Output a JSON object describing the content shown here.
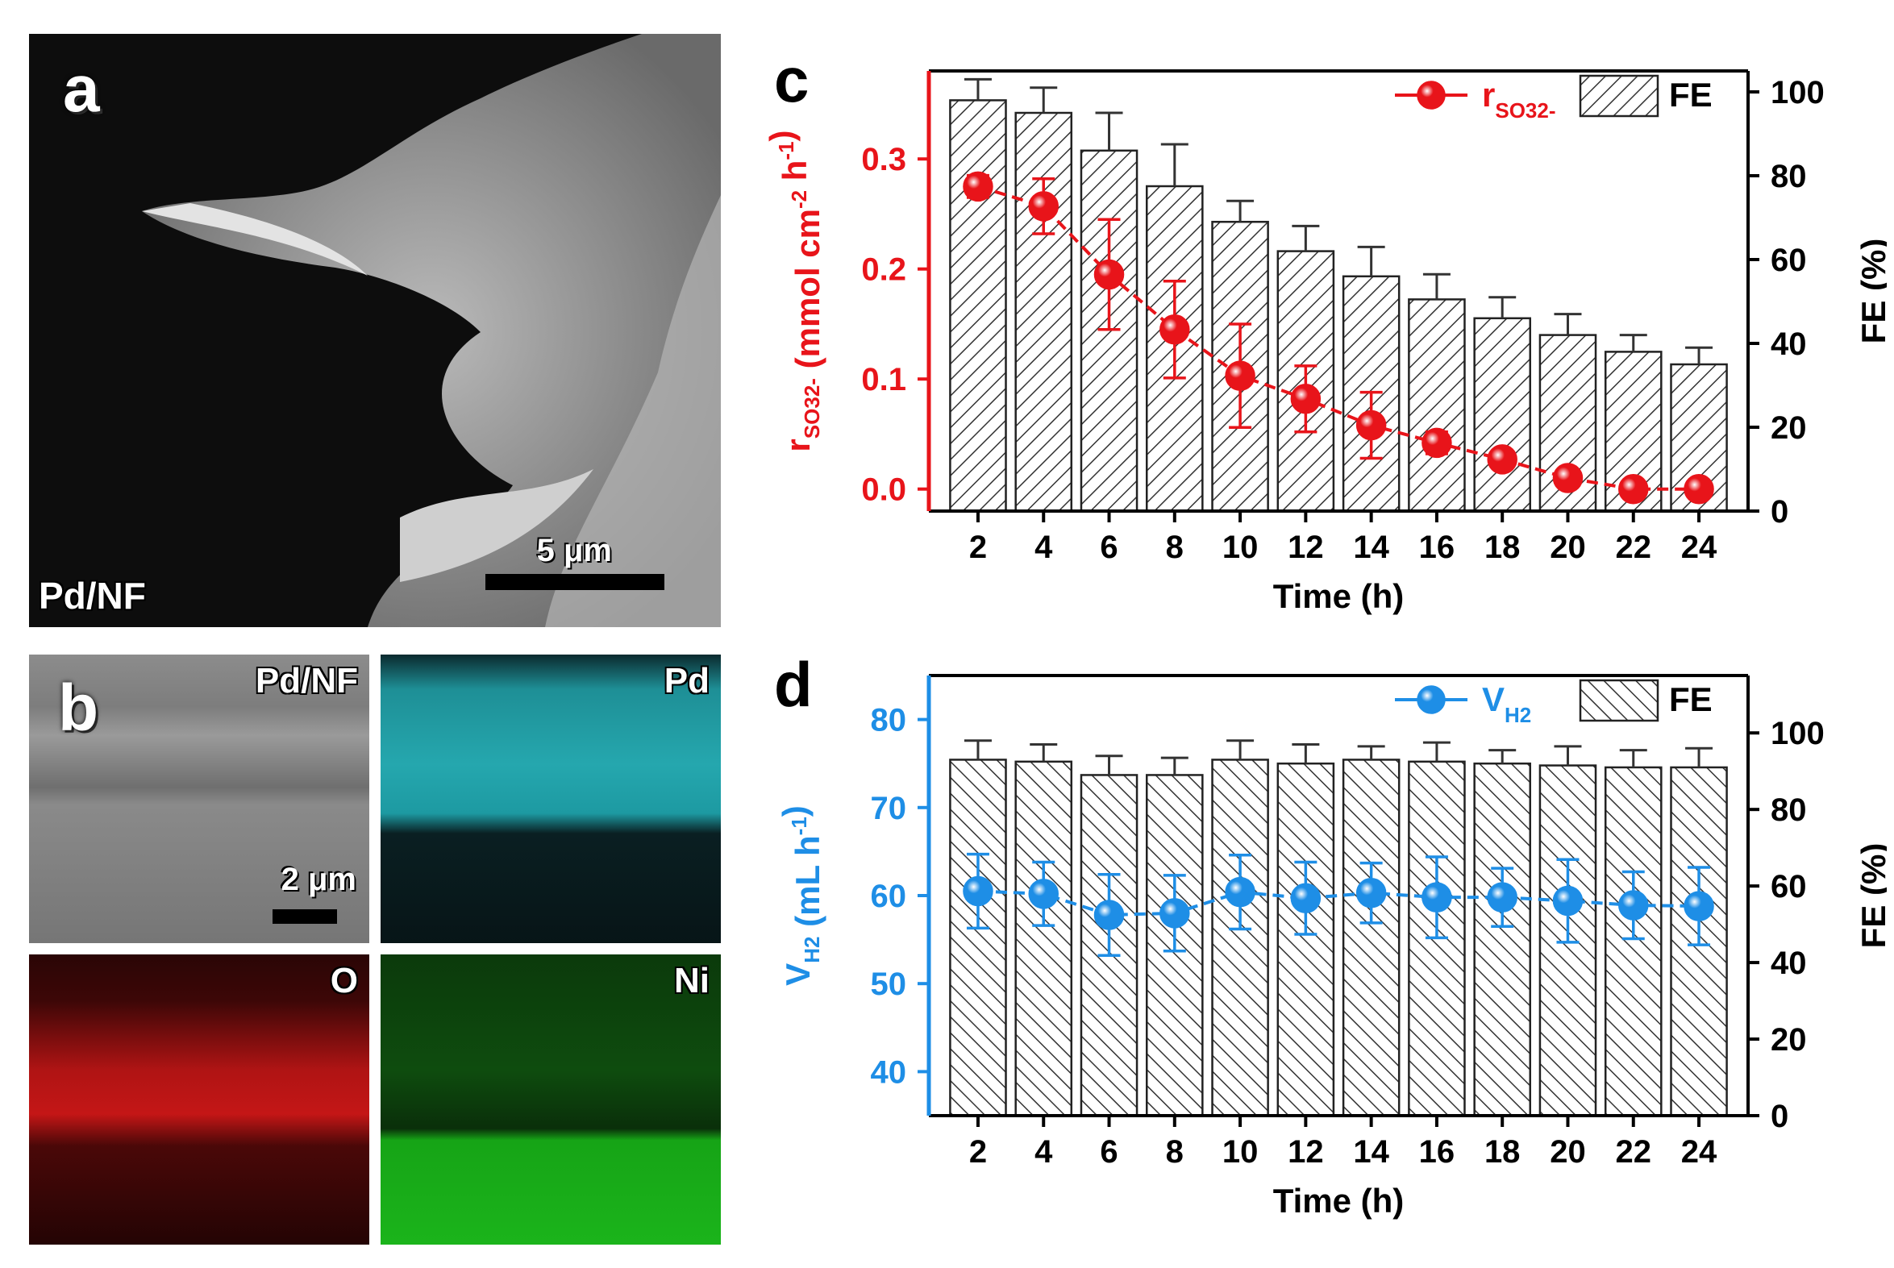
{
  "panel_a": {
    "label": "a",
    "sample": "Pd/NF",
    "scale_bar": "5 μm"
  },
  "panel_b": {
    "label": "b",
    "maps": [
      "Pd/NF",
      "Pd",
      "O",
      "Ni"
    ],
    "scale_bar": "2 μm"
  },
  "colors": {
    "red": "#e8141a",
    "blue": "#1e8ee6",
    "bar_fill": "#ffffff",
    "hatch": "#333333",
    "errorbar": "#333333"
  },
  "chart_data": [
    {
      "panel_label": "c",
      "type": "bar",
      "categories": [
        "2",
        "4",
        "6",
        "8",
        "10",
        "12",
        "14",
        "16",
        "18",
        "20",
        "22",
        "24"
      ],
      "xlabel": "Time (h)",
      "ylabel_left_main": "r",
      "ylabel_left_sub": "SO32-",
      "ylabel_left_units": " (mmol cm",
      "ylabel_left_sup1": "-2",
      "ylabel_left_mid": " h",
      "ylabel_left_sup2": "-1",
      "ylabel_left_end": ")",
      "ylabel_right": "FE (%)",
      "ylim_left": [
        -0.02,
        0.38
      ],
      "yticks_left": [
        "0.0",
        "0.1",
        "0.2",
        "0.3"
      ],
      "ylim_right": [
        0,
        105
      ],
      "yticks_right": [
        "0",
        "20",
        "40",
        "60",
        "80",
        "100"
      ],
      "legend": {
        "line_main": "r",
        "line_sub": "SO32-",
        "bar": "FE",
        "position": "top-right"
      },
      "series": [
        {
          "name": "FE",
          "kind": "bar",
          "axis": "right",
          "hatch": "forward",
          "values": [
            98,
            95,
            86,
            77.5,
            69,
            62,
            56,
            50.5,
            46,
            42,
            38,
            35
          ],
          "errors": [
            5,
            6,
            9,
            10,
            5,
            6,
            7,
            6,
            5,
            5,
            4,
            4
          ]
        },
        {
          "name": "r",
          "kind": "line",
          "axis": "left",
          "values": [
            0.275,
            0.257,
            0.195,
            0.145,
            0.103,
            0.082,
            0.058,
            0.042,
            0.027,
            0.01,
            0.0,
            0.0
          ],
          "errors": [
            0.01,
            0.025,
            0.05,
            0.044,
            0.047,
            0.03,
            0.03,
            0.01,
            0.004,
            0.004,
            0.003,
            0.003
          ]
        }
      ]
    },
    {
      "panel_label": "d",
      "type": "bar",
      "categories": [
        "2",
        "4",
        "6",
        "8",
        "10",
        "12",
        "14",
        "16",
        "18",
        "20",
        "22",
        "24"
      ],
      "xlabel": "Time (h)",
      "ylabel_left_main": "V",
      "ylabel_left_sub": "H2",
      "ylabel_left_units": " (mL h",
      "ylabel_left_sup1": "-1",
      "ylabel_left_end": ")",
      "ylabel_right": "FE (%)",
      "ylim_left": [
        35,
        85
      ],
      "yticks_left": [
        "40",
        "50",
        "60",
        "70",
        "80"
      ],
      "ylim_right": [
        0,
        115
      ],
      "yticks_right": [
        "0",
        "20",
        "40",
        "60",
        "80",
        "100"
      ],
      "legend": {
        "line_main": "V",
        "line_sub": "H2",
        "bar": "FE",
        "position": "top-right"
      },
      "series": [
        {
          "name": "FE",
          "kind": "bar",
          "axis": "right",
          "hatch": "backward",
          "values": [
            93,
            92.5,
            89,
            89,
            93,
            92,
            93,
            92.5,
            92,
            91.5,
            91,
            91
          ],
          "errors": [
            5,
            4.5,
            5,
            4.5,
            5,
            5,
            3.5,
            5,
            3.5,
            5,
            4.5,
            5
          ]
        },
        {
          "name": "V",
          "kind": "line",
          "axis": "left",
          "values": [
            60.5,
            60.2,
            57.8,
            58.0,
            60.4,
            59.7,
            60.3,
            59.8,
            59.8,
            59.4,
            58.9,
            58.8
          ],
          "errors": [
            4.2,
            3.6,
            4.6,
            4.3,
            4.2,
            4.1,
            3.4,
            4.6,
            3.3,
            4.7,
            3.8,
            4.4
          ]
        }
      ]
    }
  ]
}
